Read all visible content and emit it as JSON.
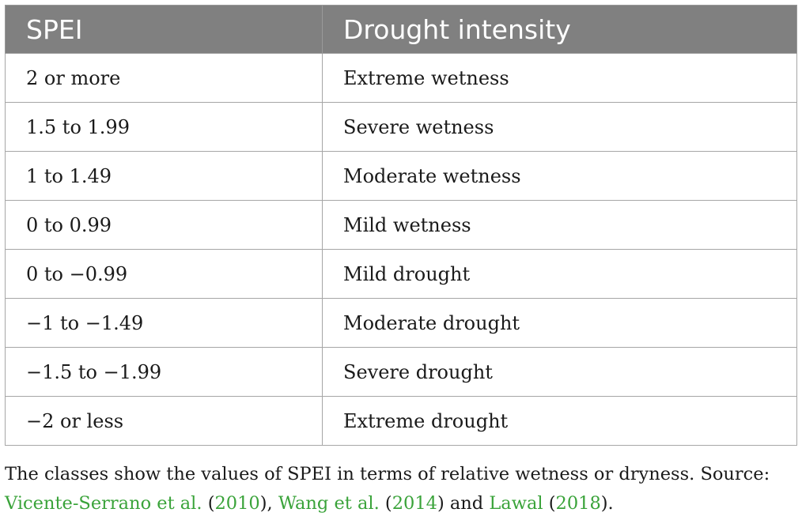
{
  "table": {
    "headers": [
      "SPEI",
      "Drought intensity"
    ],
    "rows": [
      [
        "2 or more",
        "Extreme wetness"
      ],
      [
        "1.5 to 1.99",
        "Severe wetness"
      ],
      [
        "1 to 1.49",
        "Moderate wetness"
      ],
      [
        "0 to 0.99",
        "Mild wetness"
      ],
      [
        "0 to −0.99",
        "Mild drought"
      ],
      [
        "−1 to −1.49",
        "Moderate drought"
      ],
      [
        "−1.5 to −1.99",
        "Severe drought"
      ],
      [
        "−2 or less",
        "Extreme drought"
      ]
    ]
  },
  "caption": {
    "text_1": "The classes show the values of SPEI in terms of relative wetness or dryness. Source: ",
    "ref_1": "Vicente-Serrano et al.",
    "paren_1_open": " (",
    "year_1": "2010",
    "paren_1_close": "), ",
    "ref_2": "Wang et al.",
    "paren_2_open": " (",
    "year_2": "2014",
    "paren_2_close": ") and ",
    "ref_3": "Lawal",
    "paren_3_open": " (",
    "year_3": "2018",
    "paren_3_close": ")."
  },
  "colors": {
    "header_bg": "#808080",
    "header_text": "#ffffff",
    "link": "#3aa33a",
    "border": "#a6a6a6"
  }
}
